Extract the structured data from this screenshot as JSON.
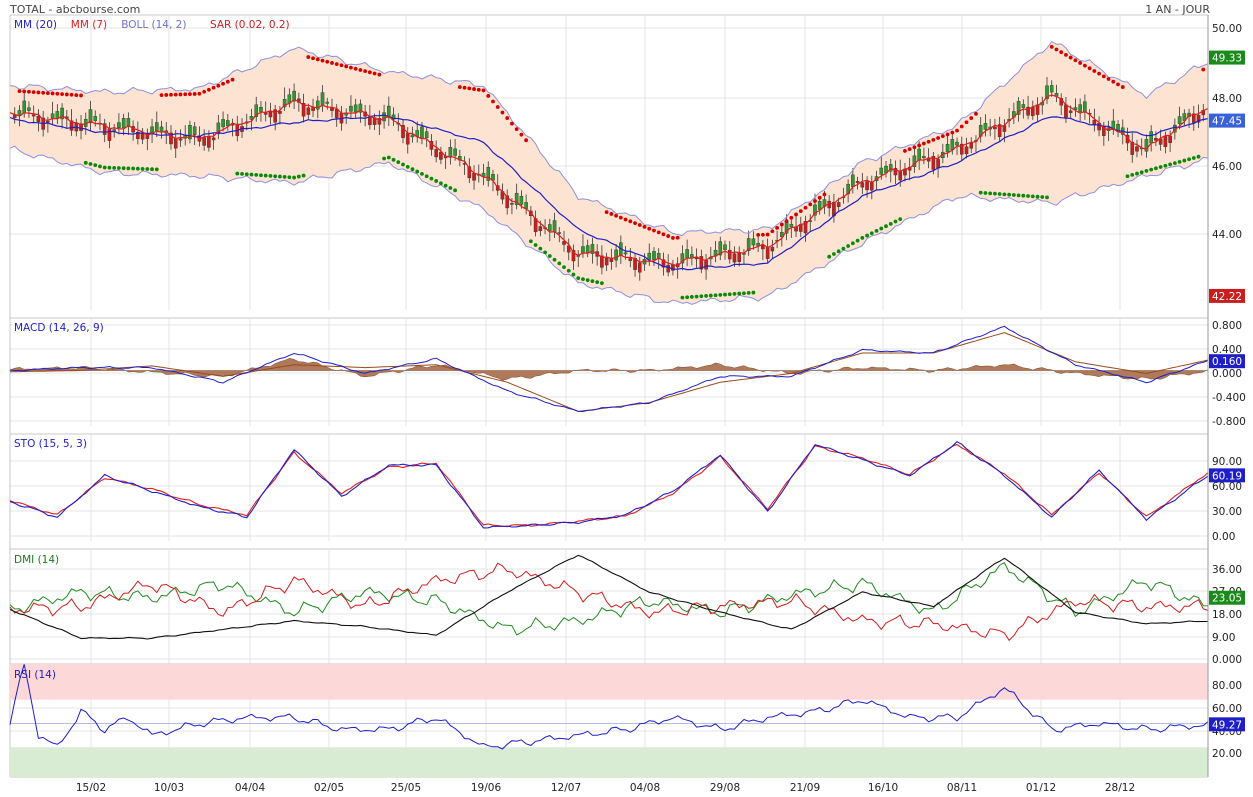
{
  "header": {
    "source": "TOTAL - abcbourse.com",
    "period": "1 AN - JOUR"
  },
  "colors": {
    "candle_up": "#2e9a2e",
    "candle_down": "#c81e1e",
    "mm20": "#1f1fc8",
    "mm7": "#e01e1e",
    "boll_band": "#8f8fe0",
    "boll_fill": "#fde3d2",
    "sar_bear": "#d40000",
    "sar_bull": "#0a8a0a",
    "macd_line": "#1f1fc8",
    "macd_signal": "#9a4a1e",
    "macd_hist": "#b07a5a",
    "sto_k": "#1f1fc8",
    "sto_d": "#e01e1e",
    "dmi_plus": "#1e8a1e",
    "dmi_minus": "#d01e1e",
    "adx": "#111111",
    "rsi_line": "#1f1fc8",
    "rsi_overbought_zone": "#fdd8d8",
    "rsi_oversold_zone": "#d8ecd4"
  },
  "chart_data": [
    {
      "type": "candlestick",
      "legend": [
        {
          "label": "MM (20)",
          "color": "#1f1fc8"
        },
        {
          "label": "MM (7)",
          "color": "#e01e1e"
        },
        {
          "label": "BOLL (14, 2)",
          "color": "#7070d0"
        },
        {
          "label": "SAR (0.02, 0.2)",
          "color": "#c81e1e"
        }
      ],
      "yticks": [
        "50.00",
        "48.00",
        "46.00",
        "44.00"
      ],
      "ylim": [
        41.8,
        50.6
      ],
      "tags": [
        {
          "label": "49.33",
          "value": 49.33,
          "color": "#1a8a1a"
        },
        {
          "label": "47.45",
          "value": 47.45,
          "color": "#3a62d8"
        },
        {
          "label": "42.22",
          "value": 42.22,
          "color": "#c81e1e"
        }
      ],
      "xticks": [
        "15/02",
        "10/03",
        "04/04",
        "02/05",
        "25/05",
        "19/06",
        "12/07",
        "04/08",
        "29/08",
        "21/09",
        "16/10",
        "08/11",
        "01/12",
        "28/12"
      ],
      "series": [
        {
          "name": "MM (20)",
          "x": [
            0,
            20,
            40,
            60,
            80,
            100,
            120,
            140,
            160,
            180,
            200,
            220,
            240,
            253
          ],
          "values": [
            47.5,
            47.1,
            47.0,
            47.4,
            47.6,
            46.8,
            44.2,
            43.0,
            43.2,
            45.2,
            46.2,
            47.6,
            47.0,
            47.5
          ]
        },
        {
          "name": "MM (7)",
          "x": [
            0,
            20,
            40,
            60,
            80,
            100,
            120,
            140,
            160,
            180,
            200,
            220,
            240,
            253
          ],
          "values": [
            47.7,
            47.3,
            46.9,
            48.0,
            47.5,
            45.8,
            43.5,
            43.2,
            43.7,
            45.6,
            46.6,
            48.2,
            46.6,
            47.9
          ]
        },
        {
          "name": "BOLL sup",
          "x": [
            0,
            20,
            40,
            60,
            80,
            100,
            120,
            140,
            160,
            180,
            200,
            220,
            240,
            253
          ],
          "values": [
            48.5,
            48.3,
            48.4,
            49.6,
            48.9,
            48.5,
            45.2,
            44.1,
            44.2,
            46.2,
            47.3,
            49.8,
            48.2,
            49.2
          ]
        },
        {
          "name": "BOLL inf",
          "x": [
            0,
            20,
            40,
            60,
            80,
            100,
            120,
            140,
            160,
            180,
            200,
            220,
            240,
            253
          ],
          "values": [
            46.6,
            45.9,
            45.8,
            45.6,
            46.2,
            44.8,
            42.6,
            42.0,
            42.2,
            43.8,
            45.2,
            45.0,
            45.8,
            46.3
          ]
        }
      ]
    },
    {
      "type": "line",
      "title": "MACD (14, 26, 9)",
      "yticks": [
        "0.800",
        "0.400",
        "0.000",
        "-0.400",
        "-0.800"
      ],
      "ylim": [
        -0.95,
        0.9
      ],
      "tags": [
        {
          "label": "0.160",
          "value": 0.16,
          "color": "#1f1fc8"
        }
      ],
      "series": [
        {
          "name": "MACD",
          "x": [
            0,
            15,
            30,
            45,
            60,
            75,
            90,
            105,
            120,
            135,
            150,
            165,
            180,
            195,
            210,
            225,
            240,
            253
          ],
          "values": [
            0.0,
            0.05,
            0.05,
            -0.2,
            0.3,
            -0.05,
            0.2,
            -0.35,
            -0.7,
            -0.55,
            -0.1,
            -0.1,
            0.35,
            0.3,
            0.75,
            0.1,
            -0.2,
            0.17
          ]
        },
        {
          "name": "Signal",
          "x": [
            0,
            15,
            30,
            45,
            60,
            75,
            90,
            105,
            120,
            135,
            150,
            165,
            180,
            195,
            210,
            225,
            240,
            253
          ],
          "values": [
            -0.02,
            0.0,
            0.08,
            -0.1,
            0.1,
            0.05,
            0.1,
            -0.2,
            -0.7,
            -0.55,
            -0.2,
            -0.05,
            0.3,
            0.3,
            0.65,
            0.15,
            -0.05,
            0.18
          ]
        }
      ]
    },
    {
      "type": "line",
      "title": "STO (15, 5, 3)",
      "yticks": [
        "90.00",
        "60.00",
        "30.00",
        "0.00"
      ],
      "ylim": [
        -3,
        100
      ],
      "tags": [
        {
          "label": "60.19",
          "value": 60.19,
          "color": "#1f1fc8"
        }
      ],
      "series": [
        {
          "name": "%K",
          "x": [
            0,
            10,
            20,
            30,
            40,
            50,
            60,
            70,
            80,
            90,
            100,
            110,
            120,
            130,
            140,
            150,
            160,
            170,
            180,
            190,
            200,
            210,
            220,
            230,
            240,
            253
          ],
          "values": [
            35,
            20,
            60,
            45,
            30,
            20,
            85,
            40,
            70,
            70,
            10,
            12,
            15,
            22,
            45,
            80,
            25,
            90,
            75,
            60,
            92,
            60,
            20,
            65,
            18,
            60
          ]
        },
        {
          "name": "%D",
          "x": [
            0,
            10,
            20,
            30,
            40,
            50,
            60,
            70,
            80,
            90,
            100,
            110,
            120,
            130,
            140,
            150,
            160,
            170,
            180,
            190,
            200,
            210,
            220,
            230,
            240,
            253
          ],
          "values": [
            36,
            22,
            58,
            47,
            32,
            22,
            82,
            43,
            68,
            72,
            12,
            12,
            16,
            21,
            43,
            78,
            28,
            88,
            77,
            61,
            90,
            62,
            22,
            63,
            20,
            63
          ]
        }
      ]
    },
    {
      "type": "line",
      "title": "DMI (14)",
      "yticks": [
        "36.00",
        "27.00",
        "18.00",
        "9.00",
        "0.000"
      ],
      "ylim": [
        0,
        40
      ],
      "tags": [
        {
          "label": "23.05",
          "value": 23.05,
          "color": "#1a8a1a"
        }
      ],
      "series": [
        {
          "name": "DI+",
          "x": [
            0,
            15,
            30,
            45,
            60,
            75,
            90,
            105,
            120,
            135,
            150,
            165,
            180,
            195,
            210,
            225,
            240,
            253
          ],
          "values": [
            19,
            25,
            23,
            28,
            18,
            25,
            22,
            12,
            15,
            22,
            18,
            24,
            28,
            18,
            34,
            18,
            29,
            20
          ]
        },
        {
          "name": "DI-",
          "x": [
            0,
            15,
            30,
            45,
            60,
            75,
            90,
            105,
            120,
            135,
            150,
            165,
            180,
            195,
            210,
            225,
            240,
            253
          ],
          "values": [
            19,
            20,
            28,
            18,
            29,
            20,
            29,
            33,
            25,
            18,
            20,
            22,
            15,
            14,
            10,
            22,
            20,
            20
          ]
        },
        {
          "name": "ADX",
          "x": [
            0,
            15,
            30,
            45,
            60,
            75,
            90,
            105,
            120,
            135,
            150,
            165,
            180,
            195,
            210,
            225,
            240,
            253
          ],
          "values": [
            19,
            9,
            9,
            12,
            15,
            13,
            10,
            25,
            38,
            25,
            18,
            12,
            25,
            20,
            37,
            18,
            14,
            15
          ]
        }
      ]
    },
    {
      "type": "line",
      "title": "RSI (14)",
      "yticks": [
        "80.00",
        "60.00",
        "40.00",
        "20.00"
      ],
      "ylim": [
        5,
        100
      ],
      "tags": [
        {
          "label": "49.27",
          "value": 49.27,
          "color": "#1f1fc8"
        }
      ],
      "series": [
        {
          "name": "RSI",
          "x": [
            0,
            3,
            6,
            10,
            15,
            20,
            25,
            30,
            40,
            50,
            60,
            70,
            80,
            90,
            100,
            110,
            120,
            130,
            140,
            150,
            160,
            170,
            180,
            190,
            200,
            210,
            220,
            230,
            240,
            253
          ],
          "values": [
            50,
            100,
            40,
            30,
            60,
            45,
            55,
            40,
            50,
            55,
            55,
            45,
            45,
            55,
            30,
            35,
            40,
            45,
            55,
            45,
            55,
            60,
            70,
            55,
            55,
            80,
            45,
            50,
            45,
            49
          ]
        }
      ]
    }
  ]
}
